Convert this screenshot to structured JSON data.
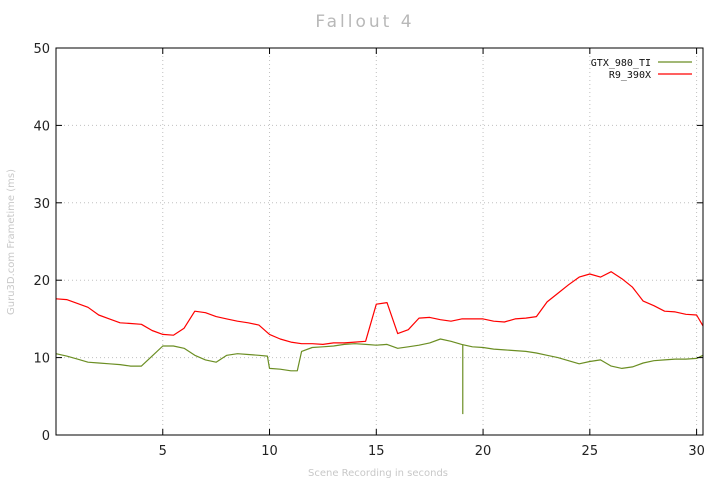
{
  "chart_data": {
    "type": "line",
    "title": "Fallout 4",
    "xlabel": "Scene Recording in seconds",
    "ylabel": "Guru3D.com Frametime (ms)",
    "xlim": [
      0,
      30.3
    ],
    "ylim": [
      0,
      50
    ],
    "xticks": [
      5,
      10,
      15,
      20,
      25,
      30
    ],
    "yticks": [
      0,
      10,
      20,
      30,
      40,
      50
    ],
    "grid": true,
    "legend_position": "top-right",
    "series": [
      {
        "name": "GTX_980_TI",
        "color": "#6b8e23",
        "x": [
          0,
          0.5,
          1,
          1.5,
          2,
          2.5,
          3,
          3.5,
          4,
          4.5,
          5,
          5.5,
          6,
          6.5,
          7,
          7.5,
          8,
          8.5,
          9,
          9.5,
          9.9,
          10,
          10.5,
          11,
          11.3,
          11.5,
          12,
          12.5,
          13,
          13.5,
          14,
          14.5,
          15,
          15.5,
          16,
          16.5,
          17,
          17.5,
          18,
          18.5,
          19,
          19.5,
          20,
          20.5,
          21,
          21.5,
          22,
          22.5,
          23,
          23.5,
          24,
          24.5,
          25,
          25.5,
          26,
          26.5,
          27,
          27.5,
          28,
          28.5,
          29,
          29.5,
          30,
          30.3
        ],
        "values": [
          10.5,
          10.2,
          9.8,
          9.4,
          9.3,
          9.2,
          9.1,
          8.9,
          8.9,
          10.2,
          11.5,
          11.5,
          11.2,
          10.3,
          9.7,
          9.4,
          10.3,
          10.5,
          10.4,
          10.3,
          10.2,
          8.6,
          8.5,
          8.3,
          8.3,
          10.8,
          11.3,
          11.4,
          11.5,
          11.7,
          11.8,
          11.7,
          11.6,
          11.7,
          11.2,
          11.4,
          11.6,
          11.9,
          12.4,
          12.1,
          11.7,
          11.4,
          11.3,
          11.1,
          11.0,
          10.9,
          10.8,
          10.6,
          10.3,
          10.0,
          9.6,
          9.2,
          9.5,
          9.7,
          8.9,
          8.6,
          8.8,
          9.3,
          9.6,
          9.7,
          9.8,
          9.8,
          9.9,
          10.3
        ],
        "annotations": [
          {
            "x": 19.05,
            "value": 2.7
          }
        ]
      },
      {
        "name": "R9_390X",
        "color": "#ff0000",
        "x": [
          0,
          0.5,
          1,
          1.5,
          2,
          2.5,
          3,
          3.5,
          4,
          4.5,
          5,
          5.5,
          6,
          6.5,
          7,
          7.5,
          8,
          8.5,
          9,
          9.5,
          10,
          10.5,
          11,
          11.5,
          12,
          12.5,
          13,
          13.5,
          14,
          14.5,
          15,
          15.5,
          16,
          16.5,
          17,
          17.5,
          18,
          18.5,
          19,
          19.5,
          20,
          20.5,
          21,
          21.5,
          22,
          22.5,
          23,
          23.5,
          24,
          24.5,
          25,
          25.5,
          26,
          26.5,
          27,
          27.5,
          28,
          28.5,
          29,
          29.5,
          30,
          30.3
        ],
        "values": [
          17.6,
          17.5,
          17.0,
          16.5,
          15.5,
          15.0,
          14.5,
          14.4,
          14.3,
          13.5,
          13.0,
          12.9,
          13.8,
          16.0,
          15.8,
          15.3,
          15.0,
          14.7,
          14.5,
          14.2,
          13.0,
          12.4,
          12.0,
          11.8,
          11.8,
          11.7,
          11.9,
          11.9,
          12.0,
          12.1,
          16.9,
          17.1,
          13.1,
          13.6,
          15.1,
          15.2,
          14.9,
          14.7,
          15.0,
          15.0,
          15.0,
          14.7,
          14.6,
          15.0,
          15.1,
          15.3,
          17.2,
          18.3,
          19.4,
          20.4,
          20.8,
          20.4,
          21.1,
          20.2,
          19.1,
          17.3,
          16.7,
          16.0,
          15.9,
          15.6,
          15.5,
          14.1
        ]
      }
    ]
  }
}
